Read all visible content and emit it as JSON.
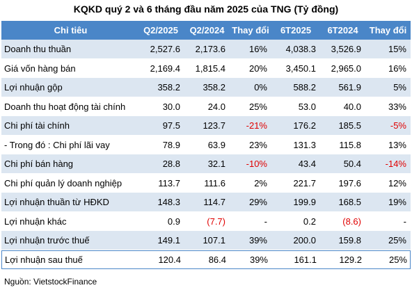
{
  "header": {
    "title": "KQKD quý 2 và 6 tháng đầu năm 2025 của TNG (Tỷ đồng)"
  },
  "table": {
    "columns": [
      "Chỉ tiêu",
      "Q2/2025",
      "Q2/2024",
      "Thay đổi",
      "6T2025",
      "6T2024",
      "Thay đổi"
    ],
    "rows": [
      [
        "Doanh thu thuần",
        "2,527.6",
        "2,173.6",
        "16%",
        "4,038.3",
        "3,526.9",
        "15%"
      ],
      [
        "Giá vốn hàng bán",
        "2,169.4",
        "1,815.4",
        "20%",
        "3,450.1",
        "2,965.0",
        "16%"
      ],
      [
        "Lợi nhuận gộp",
        "358.2",
        "358.2",
        "0%",
        "588.2",
        "561.9",
        "5%"
      ],
      [
        "Doanh thu hoạt động tài chính",
        "30.0",
        "24.0",
        "25%",
        "53.0",
        "40.0",
        "33%"
      ],
      [
        "Chi phí tài chính",
        "97.5",
        "123.7",
        "-21%",
        "176.2",
        "185.5",
        "-5%"
      ],
      [
        "- Trong đó : Chi phí lãi vay",
        "78.9",
        "63.9",
        "23%",
        "131.3",
        "115.8",
        "13%"
      ],
      [
        "Chi phí bán hàng",
        "28.8",
        "32.1",
        "-10%",
        "43.4",
        "50.4",
        "-14%"
      ],
      [
        "Chi phí quản lý doanh nghiệp",
        "113.7",
        "111.6",
        "2%",
        "221.7",
        "197.6",
        "12%"
      ],
      [
        "Lợi nhuận thuần từ HĐKD",
        "148.3",
        "114.7",
        "29%",
        "199.9",
        "168.5",
        "19%"
      ],
      [
        "Lợi nhuận khác",
        "0.9",
        "(7.7)",
        "-",
        "0.2",
        "(8.6)",
        "-"
      ],
      [
        "Lợi nhuận trước thuế",
        "149.1",
        "107.1",
        "39%",
        "200.0",
        "159.8",
        "25%"
      ],
      [
        "Lợi nhuận sau thuế",
        "120.4",
        "86.4",
        "39%",
        "161.1",
        "129.2",
        "25%"
      ]
    ]
  },
  "source": "Nguồn: VietstockFinance"
}
